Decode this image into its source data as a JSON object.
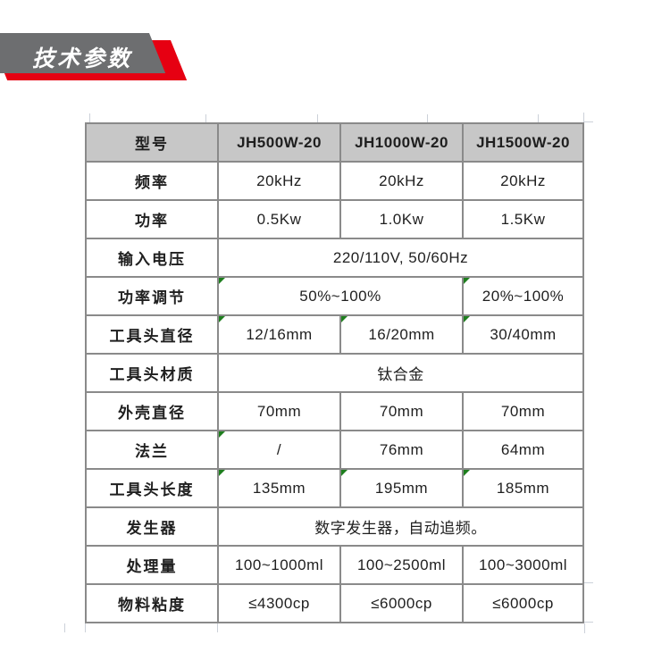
{
  "badge": {
    "label": "技术参数"
  },
  "colors": {
    "badge-gray": "#6d6e70",
    "badge-red": "#e60012",
    "border": "#8a8a8a",
    "header-bg": "#c7c7c7",
    "flag-green": "#1e7e1e",
    "text": "#1f1f1f"
  },
  "table": {
    "columns": [
      "型号",
      "JH500W-20",
      "JH1000W-20",
      "JH1500W-20"
    ],
    "rows": [
      {
        "label": "频率",
        "cells": [
          {
            "text": "20kHz"
          },
          {
            "text": "20kHz"
          },
          {
            "text": "20kHz"
          }
        ]
      },
      {
        "label": "功率",
        "cells": [
          {
            "text": "0.5Kw"
          },
          {
            "text": "1.0Kw"
          },
          {
            "text": "1.5Kw"
          }
        ]
      },
      {
        "label": "输入电压",
        "cells": [
          {
            "text": "220/110V, 50/60Hz",
            "span": 3
          }
        ]
      },
      {
        "label": "功率调节",
        "cells": [
          {
            "text": "50%~100%",
            "span": 2,
            "flag": true
          },
          {
            "text": "20%~100%",
            "flag": true
          }
        ]
      },
      {
        "label": "工具头直径",
        "cells": [
          {
            "text": "12/16mm",
            "flag": true
          },
          {
            "text": "16/20mm",
            "flag": true
          },
          {
            "text": "30/40mm",
            "flag": true
          }
        ]
      },
      {
        "label": "工具头材质",
        "cells": [
          {
            "text": "钛合金",
            "span": 3
          }
        ]
      },
      {
        "label": "外壳直径",
        "cells": [
          {
            "text": "70mm"
          },
          {
            "text": "70mm"
          },
          {
            "text": "70mm"
          }
        ]
      },
      {
        "label": "法兰",
        "cells": [
          {
            "text": "/",
            "flag": true
          },
          {
            "text": "76mm"
          },
          {
            "text": "64mm"
          }
        ]
      },
      {
        "label": "工具头长度",
        "cells": [
          {
            "text": "135mm",
            "flag": true
          },
          {
            "text": "195mm",
            "flag": true
          },
          {
            "text": "185mm",
            "flag": true
          }
        ]
      },
      {
        "label": "发生器",
        "cells": [
          {
            "text": "数字发生器，自动追频。",
            "span": 3
          }
        ]
      },
      {
        "label": "处理量",
        "cells": [
          {
            "text": "100~1000ml"
          },
          {
            "text": "100~2500ml"
          },
          {
            "text": "100~3000ml"
          }
        ]
      },
      {
        "label": "物料粘度",
        "cells": [
          {
            "text": "≤4300cp"
          },
          {
            "text": "≤6000cp"
          },
          {
            "text": "≤6000cp"
          }
        ]
      }
    ]
  }
}
